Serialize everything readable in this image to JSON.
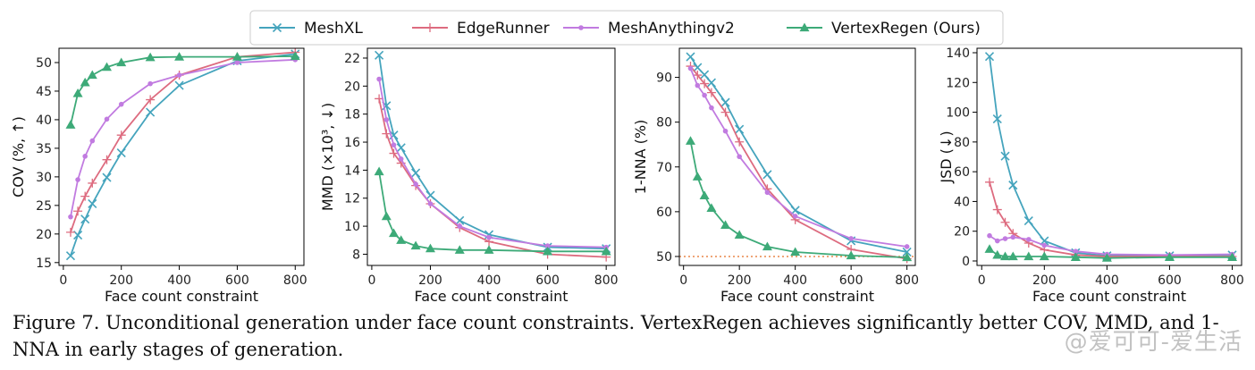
{
  "legend": {
    "entries": [
      {
        "name": "MeshXL",
        "color": "#45a4bd",
        "marker": "x"
      },
      {
        "name": "EdgeRunner",
        "color": "#dd6b7f",
        "marker": "plus"
      },
      {
        "name": "MeshAnythingv2",
        "color": "#c17be0",
        "marker": "dot"
      },
      {
        "name": "VertexRegen (Ours)",
        "color": "#3daa78",
        "marker": "triangle"
      }
    ]
  },
  "chart_data": [
    {
      "type": "line",
      "xlabel": "Face count constraint",
      "ylabel": "COV (%, ↑)",
      "xlim": [
        -15,
        830
      ],
      "ylim": [
        14.5,
        52.5
      ],
      "xticks": [
        0,
        200,
        400,
        600,
        800
      ],
      "yticks": [
        15,
        20,
        25,
        30,
        35,
        40,
        45,
        50
      ],
      "series": [
        {
          "name": "MeshXL",
          "x": [
            25,
            50,
            75,
            100,
            150,
            200,
            300,
            400,
            600,
            800
          ],
          "y": [
            16.2,
            19.8,
            22.6,
            25.3,
            29.9,
            34.2,
            41.3,
            46.0,
            50.3,
            51.5
          ]
        },
        {
          "name": "EdgeRunner",
          "x": [
            25,
            50,
            75,
            100,
            150,
            200,
            300,
            400,
            600,
            800
          ],
          "y": [
            20.3,
            24.0,
            26.6,
            28.9,
            33.0,
            37.3,
            43.5,
            47.8,
            51.0,
            51.8
          ]
        },
        {
          "name": "MeshAnythingv2",
          "x": [
            25,
            50,
            75,
            100,
            150,
            200,
            300,
            400,
            600,
            800
          ],
          "y": [
            23.0,
            29.5,
            33.6,
            36.3,
            40.1,
            42.7,
            46.3,
            47.8,
            50.0,
            50.5
          ]
        },
        {
          "name": "VertexRegen (Ours)",
          "x": [
            25,
            50,
            75,
            100,
            150,
            200,
            300,
            400,
            600,
            800
          ],
          "y": [
            39.1,
            44.6,
            46.5,
            47.8,
            49.2,
            50.0,
            50.9,
            51.0,
            51.0,
            51.1
          ]
        }
      ]
    },
    {
      "type": "line",
      "xlabel": "Face count constraint",
      "ylabel": "MMD (×10³, ↓)",
      "xlim": [
        -15,
        830
      ],
      "ylim": [
        7.2,
        22.7
      ],
      "xticks": [
        0,
        200,
        400,
        600,
        800
      ],
      "yticks": [
        8,
        10,
        12,
        14,
        16,
        18,
        20,
        22
      ],
      "series": [
        {
          "name": "MeshXL",
          "x": [
            25,
            50,
            75,
            100,
            150,
            200,
            300,
            400,
            600,
            800
          ],
          "y": [
            22.2,
            18.6,
            16.5,
            15.6,
            13.8,
            12.2,
            10.4,
            9.4,
            8.5,
            8.4
          ]
        },
        {
          "name": "EdgeRunner",
          "x": [
            25,
            50,
            75,
            100,
            150,
            200,
            300,
            400,
            600,
            800
          ],
          "y": [
            19.1,
            16.6,
            15.2,
            14.5,
            12.9,
            11.6,
            9.9,
            8.9,
            8.0,
            7.8
          ]
        },
        {
          "name": "MeshAnythingv2",
          "x": [
            25,
            50,
            75,
            100,
            150,
            200,
            300,
            400,
            600,
            800
          ],
          "y": [
            20.5,
            17.6,
            15.8,
            14.8,
            13.0,
            11.6,
            10.0,
            9.2,
            8.6,
            8.5
          ]
        },
        {
          "name": "VertexRegen (Ours)",
          "x": [
            25,
            50,
            75,
            100,
            150,
            200,
            300,
            400,
            600,
            800
          ],
          "y": [
            13.9,
            10.7,
            9.5,
            9.0,
            8.6,
            8.4,
            8.3,
            8.3,
            8.2,
            8.2
          ]
        }
      ]
    },
    {
      "type": "line",
      "xlabel": "Face count constraint",
      "ylabel": "1-NNA (%)",
      "xlim": [
        -15,
        830
      ],
      "ylim": [
        48,
        96.5
      ],
      "xticks": [
        0,
        200,
        400,
        600,
        800
      ],
      "yticks": [
        50,
        60,
        70,
        80,
        90
      ],
      "reference_line": 50,
      "series": [
        {
          "name": "MeshXL",
          "x": [
            25,
            50,
            75,
            100,
            150,
            200,
            300,
            400,
            600,
            800
          ],
          "y": [
            94.6,
            92.2,
            90.6,
            88.8,
            84.4,
            78.4,
            68.3,
            60.3,
            53.5,
            51.0
          ]
        },
        {
          "name": "EdgeRunner",
          "x": [
            25,
            50,
            75,
            100,
            150,
            200,
            300,
            400,
            600,
            800
          ],
          "y": [
            92.5,
            90.5,
            88.6,
            86.6,
            82.2,
            75.6,
            65.1,
            58.2,
            51.6,
            49.5
          ]
        },
        {
          "name": "MeshAnythingv2",
          "x": [
            25,
            50,
            75,
            100,
            150,
            200,
            300,
            400,
            600,
            800
          ],
          "y": [
            92.0,
            88.2,
            86.0,
            83.2,
            78.0,
            72.3,
            64.3,
            59.0,
            54.0,
            52.2
          ]
        },
        {
          "name": "VertexRegen (Ours)",
          "x": [
            25,
            50,
            75,
            100,
            150,
            200,
            300,
            400,
            600,
            800
          ],
          "y": [
            75.8,
            67.8,
            63.6,
            60.8,
            57.0,
            54.8,
            52.2,
            51.0,
            50.2,
            49.8
          ]
        }
      ]
    },
    {
      "type": "line",
      "xlabel": "Face count constraint",
      "ylabel": "JSD (↓)",
      "xlim": [
        -15,
        830
      ],
      "ylim": [
        -3,
        143
      ],
      "xticks": [
        0,
        200,
        400,
        600,
        800
      ],
      "yticks": [
        0,
        20,
        40,
        60,
        80,
        100,
        120,
        140
      ],
      "series": [
        {
          "name": "MeshXL",
          "x": [
            25,
            50,
            75,
            100,
            150,
            200,
            300,
            400,
            600,
            800
          ],
          "y": [
            137.5,
            95.5,
            70.5,
            51.0,
            27.0,
            13.5,
            5.5,
            3.5,
            3.5,
            4.0
          ]
        },
        {
          "name": "EdgeRunner",
          "x": [
            25,
            50,
            75,
            100,
            150,
            200,
            300,
            400,
            600,
            800
          ],
          "y": [
            53.0,
            34.5,
            26.0,
            18.5,
            12.0,
            7.5,
            4.0,
            3.0,
            3.0,
            3.0
          ]
        },
        {
          "name": "MeshAnythingv2",
          "x": [
            25,
            50,
            75,
            100,
            150,
            200,
            300,
            400,
            600,
            800
          ],
          "y": [
            17.0,
            13.5,
            15.0,
            16.0,
            14.5,
            10.5,
            6.5,
            4.5,
            4.0,
            4.5
          ]
        },
        {
          "name": "VertexRegen (Ours)",
          "x": [
            25,
            50,
            75,
            100,
            150,
            200,
            300,
            400,
            600,
            800
          ],
          "y": [
            8.0,
            4.0,
            3.0,
            3.0,
            3.0,
            3.0,
            2.5,
            2.0,
            2.5,
            2.5
          ]
        }
      ]
    }
  ],
  "caption": "Figure 7. Unconditional generation under face count constraints. VertexRegen achieves significantly better COV, MMD, and 1-NNA in early stages of generation.",
  "watermark": "@爱可可-爱生活"
}
